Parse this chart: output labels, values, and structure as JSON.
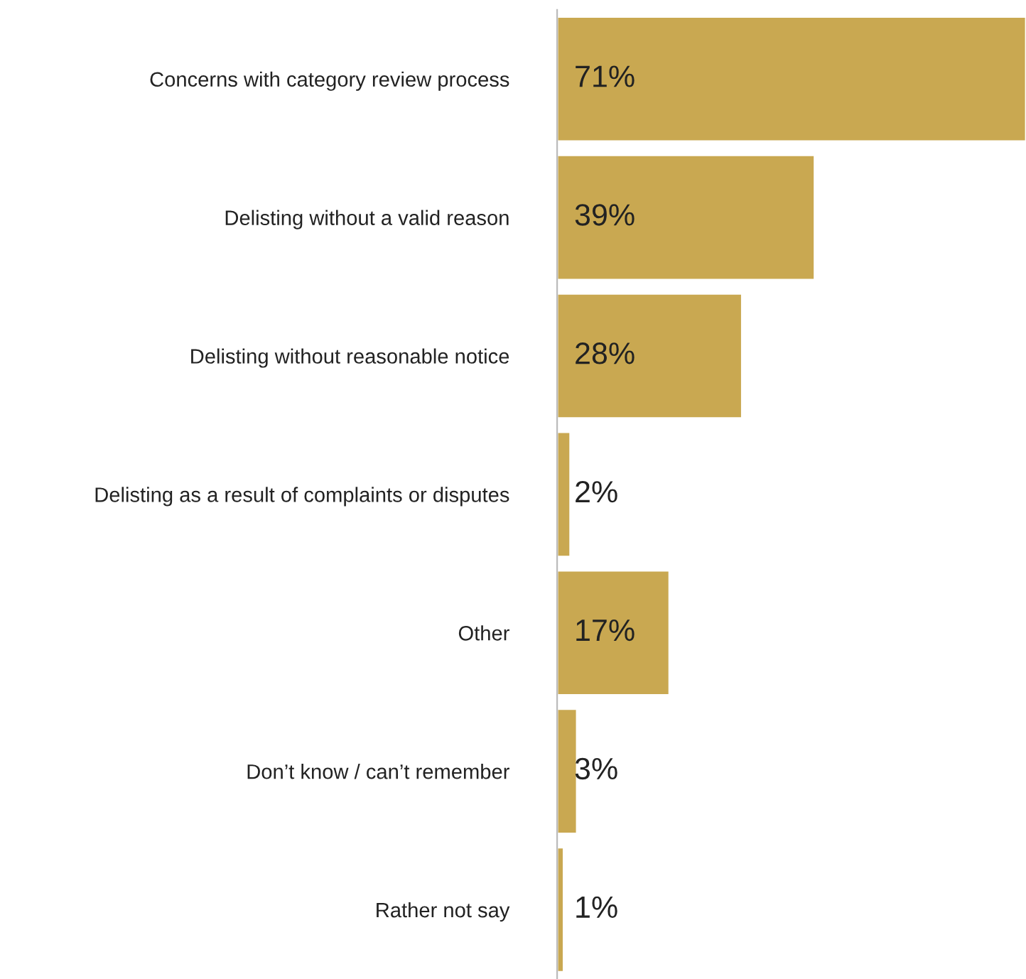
{
  "chart_data": {
    "type": "bar",
    "orientation": "horizontal",
    "categories": [
      "Concerns with category review process",
      "Delisting without a valid reason",
      "Delisting without reasonable notice",
      "Delisting as a result of complaints or disputes",
      "Other",
      "Don’t know / can’t remember",
      "Rather not say"
    ],
    "values": [
      71,
      39,
      28,
      2,
      17,
      3,
      1
    ],
    "value_labels": [
      "71%",
      "39%",
      "28%",
      "2%",
      "17%",
      "3%",
      "1%"
    ],
    "color": "#c9a851",
    "grid": false,
    "legend": false,
    "tick_labels": "y"
  }
}
